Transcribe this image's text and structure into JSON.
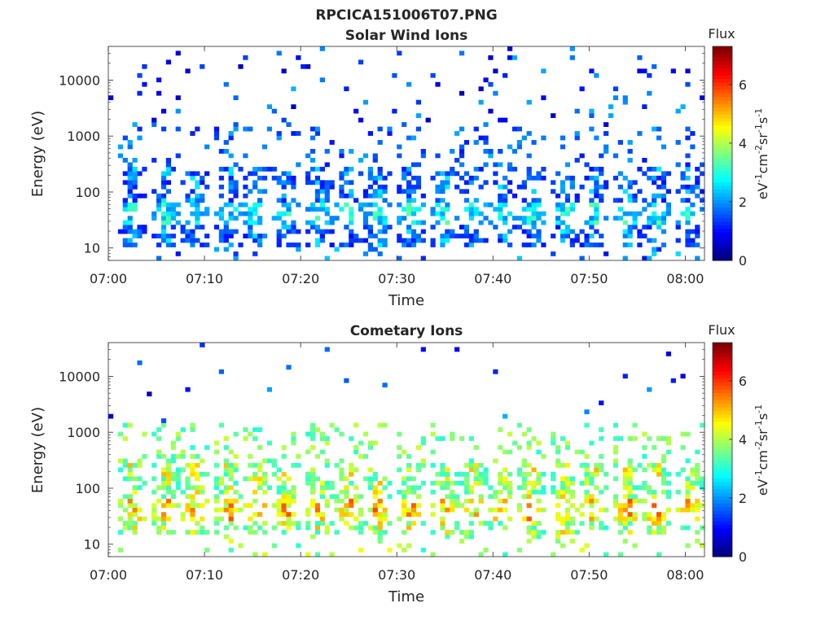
{
  "figure": {
    "title": "RPCICA151006T07.PNG"
  },
  "colormap": [
    "#00007f",
    "#0000ff",
    "#007fff",
    "#00ffff",
    "#7fff7f",
    "#ffff00",
    "#ff7f00",
    "#ff0000",
    "#7f0000"
  ],
  "chart_data": [
    {
      "type": "heatmap",
      "title": "Solar Wind Ions",
      "xlabel": "Time",
      "ylabel": "Energy (eV)",
      "xlim": [
        "07:00",
        "08:02"
      ],
      "ylim": [
        6,
        40000
      ],
      "yscale": "log",
      "xticks": [
        "07:00",
        "07:10",
        "07:20",
        "07:30",
        "07:40",
        "07:50",
        "08:00"
      ],
      "yticks": [
        "10",
        "100",
        "1000",
        "10000"
      ],
      "colorbar": {
        "label": "Flux",
        "units": "eV-1cm-2sr-1s-1",
        "ticks": [
          "0",
          "2",
          "4",
          "6"
        ],
        "range": [
          0,
          7.3
        ]
      },
      "burst_minutes": [
        2.5,
        6.0,
        9.0,
        12.5,
        15.5,
        18.5,
        22.0,
        25.0,
        28.0,
        31.5,
        35.0,
        38.0,
        41.0,
        44.0,
        47.5,
        50.5,
        54.0,
        57.0,
        60.5
      ],
      "core_energy_range_eV": [
        10,
        300
      ],
      "typical_flux": [
        1.0,
        3.0
      ],
      "max_flux": 4.0,
      "grid": false
    },
    {
      "type": "heatmap",
      "title": "Cometary Ions",
      "xlabel": "Time",
      "ylabel": "Energy (eV)",
      "xlim": [
        "07:00",
        "08:02"
      ],
      "ylim": [
        6,
        40000
      ],
      "yscale": "log",
      "xticks": [
        "07:00",
        "07:10",
        "07:20",
        "07:30",
        "07:40",
        "07:50",
        "08:00"
      ],
      "yticks": [
        "10",
        "100",
        "1000",
        "10000"
      ],
      "colorbar": {
        "label": "Flux",
        "units": "eV-1cm-2sr-1s-1",
        "ticks": [
          "0",
          "2",
          "4",
          "6"
        ],
        "range": [
          0,
          7.3
        ]
      },
      "burst_minutes": [
        2.5,
        6.0,
        9.0,
        12.5,
        15.5,
        18.5,
        22.0,
        25.0,
        28.0,
        31.5,
        35.0,
        38.0,
        41.0,
        44.0,
        47.5,
        50.5,
        54.0,
        57.0,
        60.5
      ],
      "core_energy_range_eV": [
        15,
        300
      ],
      "typical_flux": [
        3.0,
        5.5
      ],
      "max_flux": 6.5,
      "grid": false
    }
  ]
}
